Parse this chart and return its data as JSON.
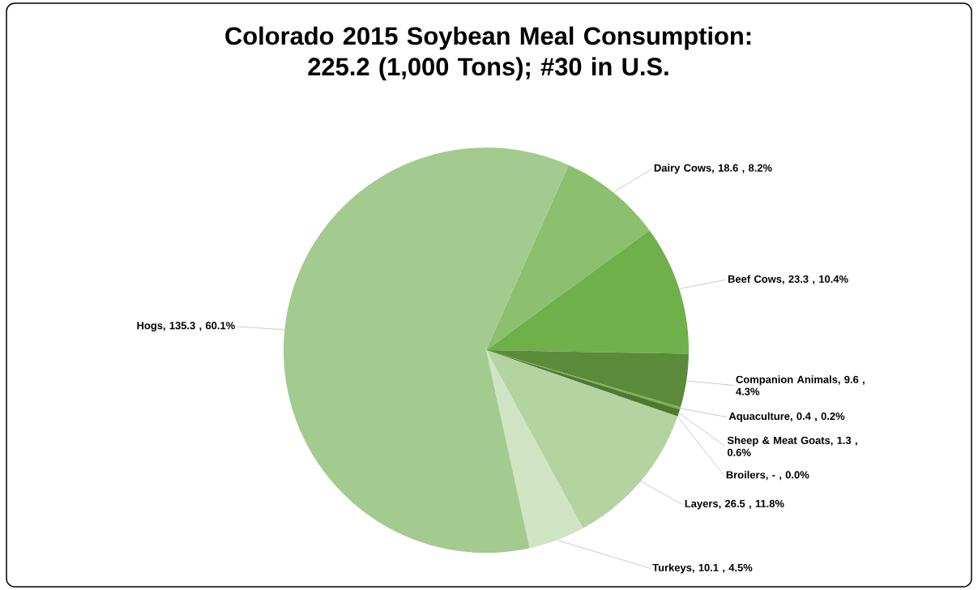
{
  "chart_data": {
    "type": "pie",
    "title": "Colorado 2015 Soybean Meal Consumption: 225.2 (1,000 Tons); #30 in U.S.",
    "categories": [
      "Dairy Cows",
      "Beef Cows",
      "Companion Animals",
      "Aquaculture",
      "Sheep & Meat Goats",
      "Broilers",
      "Layers",
      "Turkeys",
      "Hogs"
    ],
    "values": [
      18.6,
      23.3,
      9.6,
      0.4,
      1.3,
      0,
      26.5,
      10.1,
      135.3
    ],
    "value_labels": [
      ", 18.6 , 8.2%",
      ", 23.3 , 10.4%",
      ", 9.6 , 4.3%",
      ", 0.4 , 0.2%",
      ", 1.3 , 0.6%",
      ", - , 0.0%",
      ", 26.5 , 11.8%",
      ", 10.1 , 4.5%",
      ", 135.3 , 60.1%"
    ],
    "colors": [
      "#8cbf6e",
      "#6fb04a",
      "#5a8a3a",
      "#7ab050",
      "#4e7a30",
      "#3f6b2a",
      "#b3d4a0",
      "#cfe4c2",
      "#a3ca8f"
    ]
  }
}
